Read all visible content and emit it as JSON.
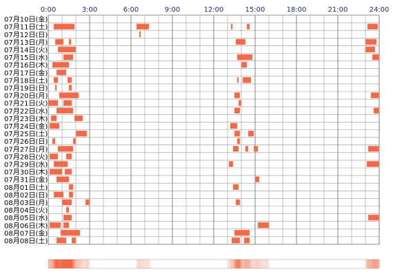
{
  "chart_data": {
    "type": "timeline",
    "xlim": [
      0,
      24
    ],
    "xticks": [
      {
        "value": 0,
        "label": "0:00"
      },
      {
        "value": 3,
        "label": "3:00"
      },
      {
        "value": 6,
        "label": "6:00"
      },
      {
        "value": 9,
        "label": "9:00"
      },
      {
        "value": 12,
        "label": "12:00"
      },
      {
        "value": 15,
        "label": "15:00"
      },
      {
        "value": 18,
        "label": "18:00"
      },
      {
        "value": 21,
        "label": "21:00"
      },
      {
        "value": 24,
        "label": "24:00"
      }
    ],
    "color": "#f06a48",
    "grid": true,
    "rows": [
      {
        "label": "07月10日(金)",
        "intervals": []
      },
      {
        "label": "07月11日(土)",
        "intervals": [
          [
            0.4,
            1.9
          ],
          [
            6.4,
            7.3
          ],
          [
            13.25,
            13.35
          ],
          [
            14.4,
            14.6
          ],
          [
            23.15,
            23.9
          ]
        ]
      },
      {
        "label": "07月12日(日)",
        "intervals": [
          [
            6.6,
            6.7
          ]
        ]
      },
      {
        "label": "07月13日(月)",
        "intervals": [
          [
            0.5,
            1.1
          ],
          [
            1.5,
            1.65
          ],
          [
            13.6,
            14.3
          ],
          [
            23.0,
            23.8
          ]
        ]
      },
      {
        "label": "07月14日(火)",
        "intervals": [
          [
            0.7,
            2.0
          ],
          [
            23.0,
            23.7
          ]
        ]
      },
      {
        "label": "07月15日(水)",
        "intervals": [
          [
            1.1,
            1.8
          ],
          [
            13.7,
            14.8
          ],
          [
            23.5,
            24
          ]
        ]
      },
      {
        "label": "07月16日(木)",
        "intervals": [
          [
            0.3,
            1.5
          ],
          [
            14.0,
            14.4
          ]
        ]
      },
      {
        "label": "07月17日(金)",
        "intervals": [
          [
            0.6,
            1.3
          ]
        ]
      },
      {
        "label": "07月18日(土)",
        "intervals": [
          [
            0.4,
            0.7
          ],
          [
            1.4,
            1.7
          ],
          [
            13.7,
            13.8
          ],
          [
            14.1,
            14.7
          ]
        ]
      },
      {
        "label": "07月19日(日)",
        "intervals": [
          [
            0.5,
            0.6
          ],
          [
            1.5,
            1.7
          ]
        ]
      },
      {
        "label": "07月20日(月)",
        "intervals": [
          [
            0.8,
            2.2
          ],
          [
            13.5,
            13.9
          ],
          [
            23.4,
            24
          ]
        ]
      },
      {
        "label": "07月21日(火)",
        "intervals": [
          [
            0,
            0.7
          ],
          [
            1.1,
            1.7
          ],
          [
            13.8,
            14.0
          ]
        ]
      },
      {
        "label": "07月22日(水)",
        "intervals": [
          [
            0.6,
            1.8
          ],
          [
            13.5,
            13.9
          ],
          [
            23.6,
            24
          ]
        ]
      },
      {
        "label": "07月23日(木)",
        "intervals": [
          [
            0.2,
            0.6
          ],
          [
            1.9,
            2.5
          ]
        ]
      },
      {
        "label": "07月24日(金)",
        "intervals": [
          [
            0.1,
            0.8
          ],
          [
            13.2,
            13.7
          ]
        ]
      },
      {
        "label": "07月25日(土)",
        "intervals": [
          [
            2.0,
            2.8
          ],
          [
            13.5,
            13.9
          ],
          [
            14.5,
            14.9
          ]
        ]
      },
      {
        "label": "07月26日(日)",
        "intervals": [
          [
            0.3,
            0.5
          ],
          [
            1.8,
            2.0
          ],
          [
            13.7,
            13.9
          ]
        ]
      },
      {
        "label": "07月27日(月)",
        "intervals": [
          [
            0.7,
            1.8
          ],
          [
            13.4,
            13.8
          ],
          [
            14.3,
            14.5
          ],
          [
            14.9,
            15.2
          ],
          [
            23.2,
            24
          ]
        ]
      },
      {
        "label": "07月28日(火)",
        "intervals": [
          [
            0.1,
            0.7
          ],
          [
            1.3,
            1.7
          ]
        ]
      },
      {
        "label": "07月29日(水)",
        "intervals": [
          [
            0.4,
            1.4
          ],
          [
            13.1,
            13.4
          ],
          [
            23.1,
            24
          ]
        ]
      },
      {
        "label": "07月30日(木)",
        "intervals": [
          [
            0.1,
            1.0
          ],
          [
            1.2,
            1.7
          ]
        ]
      },
      {
        "label": "07月31日(金)",
        "intervals": [
          [
            0.6,
            1.5
          ],
          [
            15.0,
            15.3
          ]
        ]
      },
      {
        "label": "08月01日(土)",
        "intervals": [
          [
            1.5,
            1.8
          ],
          [
            13.4,
            13.8
          ]
        ]
      },
      {
        "label": "08月02日(日)",
        "intervals": [
          [
            0.4,
            1.1
          ],
          [
            1.5,
            1.8
          ]
        ]
      },
      {
        "label": "08月03日(月)",
        "intervals": [
          [
            1.0,
            1.7
          ],
          [
            2.7,
            3.0
          ],
          [
            13.6,
            13.9
          ]
        ]
      },
      {
        "label": "08月04日(火)",
        "intervals": [
          [
            1.3,
            1.5
          ]
        ]
      },
      {
        "label": "08月05日(水)",
        "intervals": [
          [
            1.1,
            1.7
          ],
          [
            23.2,
            24
          ]
        ]
      },
      {
        "label": "08月06日(木)",
        "intervals": [
          [
            0.1,
            0.9
          ],
          [
            1.1,
            1.5
          ],
          [
            15.2,
            16.0
          ]
        ]
      },
      {
        "label": "08月07日(金)",
        "intervals": [
          [
            0.9,
            2.3
          ],
          [
            13.5,
            14.6
          ]
        ]
      },
      {
        "label": "08月08日(土)",
        "intervals": [
          [
            0.6,
            1.3
          ],
          [
            1.7,
            2.0
          ],
          [
            13.3,
            13.9
          ],
          [
            14.2,
            14.6
          ]
        ]
      }
    ]
  }
}
